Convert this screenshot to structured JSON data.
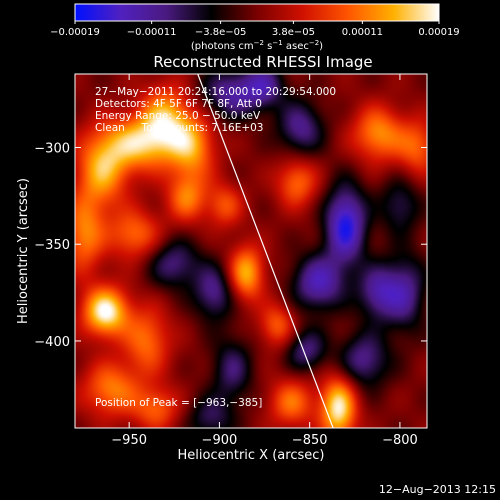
{
  "chart_data": {
    "type": "heatmap",
    "title": "Reconstructed RHESSI Image",
    "xlabel": "Heliocentric X (arcsec)",
    "ylabel": "Heliocentric Y (arcsec)",
    "xlim": [
      -980,
      -785
    ],
    "ylim": [
      -445,
      -262
    ],
    "x_ticks": [
      -950,
      -900,
      -850,
      -800
    ],
    "y_ticks": [
      -300,
      -350,
      -400
    ],
    "x_tick_labels": [
      "−950",
      "−900",
      "−850",
      "−800"
    ],
    "y_tick_labels": [
      "−300",
      "−350",
      "−400"
    ],
    "colorbar": {
      "range": [
        -0.00019,
        0.00019
      ],
      "ticks": [
        -0.00019,
        -0.00011,
        -3.8e-05,
        3.8e-05,
        0.00011,
        0.00019
      ],
      "tick_labels": [
        "−0.00019",
        "−0.00011",
        "−3.8e−05",
        "3.8e−05",
        "0.00011",
        "0.00019"
      ],
      "unit_text": "(photons cm",
      "unit_exp1": "−2",
      "unit_mid": " s",
      "unit_exp2": "−1",
      "unit_mid2": " asec",
      "unit_exp3": "−2",
      "unit_end": ")",
      "colors": [
        "#0010ff",
        "#5020c0",
        "#4a1a80",
        "#000000",
        "#7a0000",
        "#d01000",
        "#ff5500",
        "#ffb000",
        "#ffffff"
      ]
    },
    "annotations": {
      "time": "27−May−2011 20:24:16.000 to 20:29:54.000",
      "detectors": "Detectors: 4F 5F 6F 7F 8F, Att 0",
      "energy": "Energy Range: 25.0 − 50.0 keV",
      "clean": "Clean     Total counts: 7.16E+03",
      "peak": "Position of Peak = [−963,−385]"
    },
    "limb_line": [
      [
        -912,
        -262
      ],
      [
        -837,
        -445
      ]
    ],
    "bright_sources": [
      {
        "x": -963,
        "y": -385,
        "amp": 1.0,
        "sx": 9,
        "sy": 9
      },
      {
        "x": -945,
        "y": -298,
        "amp": 0.75,
        "sx": 14,
        "sy": 10
      },
      {
        "x": -965,
        "y": -312,
        "amp": 0.7,
        "sx": 10,
        "sy": 14
      },
      {
        "x": -930,
        "y": -285,
        "amp": 0.7,
        "sx": 10,
        "sy": 12
      },
      {
        "x": -915,
        "y": -300,
        "amp": 0.65,
        "sx": 9,
        "sy": 12
      },
      {
        "x": -918,
        "y": -326,
        "amp": 0.55,
        "sx": 8,
        "sy": 9
      },
      {
        "x": -947,
        "y": -345,
        "amp": 0.55,
        "sx": 10,
        "sy": 9
      },
      {
        "x": -975,
        "y": -345,
        "amp": 0.6,
        "sx": 8,
        "sy": 14
      },
      {
        "x": -940,
        "y": -400,
        "amp": 0.55,
        "sx": 9,
        "sy": 12
      },
      {
        "x": -960,
        "y": -425,
        "amp": 0.6,
        "sx": 11,
        "sy": 10
      },
      {
        "x": -935,
        "y": -435,
        "amp": 0.5,
        "sx": 9,
        "sy": 8
      },
      {
        "x": -885,
        "y": -365,
        "amp": 0.75,
        "sx": 7,
        "sy": 10
      },
      {
        "x": -897,
        "y": -330,
        "amp": 0.45,
        "sx": 7,
        "sy": 8
      },
      {
        "x": -857,
        "y": -318,
        "amp": 0.55,
        "sx": 8,
        "sy": 9
      },
      {
        "x": -868,
        "y": -392,
        "amp": 0.5,
        "sx": 7,
        "sy": 8
      },
      {
        "x": -860,
        "y": -432,
        "amp": 0.55,
        "sx": 9,
        "sy": 9
      },
      {
        "x": -834,
        "y": -435,
        "amp": 0.95,
        "sx": 7,
        "sy": 12
      },
      {
        "x": -812,
        "y": -293,
        "amp": 0.65,
        "sx": 10,
        "sy": 10
      },
      {
        "x": -790,
        "y": -300,
        "amp": 0.5,
        "sx": 8,
        "sy": 10
      }
    ],
    "dark_sources": [
      {
        "x": -893,
        "y": -272,
        "amp": 0.6,
        "sx": 12,
        "sy": 9
      },
      {
        "x": -925,
        "y": -360,
        "amp": 0.5,
        "sx": 10,
        "sy": 9
      },
      {
        "x": -903,
        "y": -375,
        "amp": 0.55,
        "sx": 8,
        "sy": 10
      },
      {
        "x": -893,
        "y": -415,
        "amp": 0.45,
        "sx": 8,
        "sy": 12
      },
      {
        "x": -875,
        "y": -268,
        "amp": 0.5,
        "sx": 8,
        "sy": 8
      },
      {
        "x": -855,
        "y": -290,
        "amp": 0.55,
        "sx": 9,
        "sy": 10
      },
      {
        "x": -830,
        "y": -340,
        "amp": 0.9,
        "sx": 8,
        "sy": 14
      },
      {
        "x": -845,
        "y": -370,
        "amp": 0.7,
        "sx": 10,
        "sy": 10
      },
      {
        "x": -812,
        "y": -375,
        "amp": 0.6,
        "sx": 8,
        "sy": 10
      },
      {
        "x": -820,
        "y": -410,
        "amp": 0.55,
        "sx": 10,
        "sy": 10
      },
      {
        "x": -797,
        "y": -375,
        "amp": 0.55,
        "sx": 8,
        "sy": 14
      },
      {
        "x": -800,
        "y": -330,
        "amp": 0.4,
        "sx": 8,
        "sy": 10
      },
      {
        "x": -852,
        "y": -405,
        "amp": 0.5,
        "sx": 8,
        "sy": 8
      },
      {
        "x": -905,
        "y": -440,
        "amp": 0.4,
        "sx": 9,
        "sy": 8
      }
    ]
  },
  "footer": {
    "timestamp": "12−Aug−2013 12:15"
  }
}
